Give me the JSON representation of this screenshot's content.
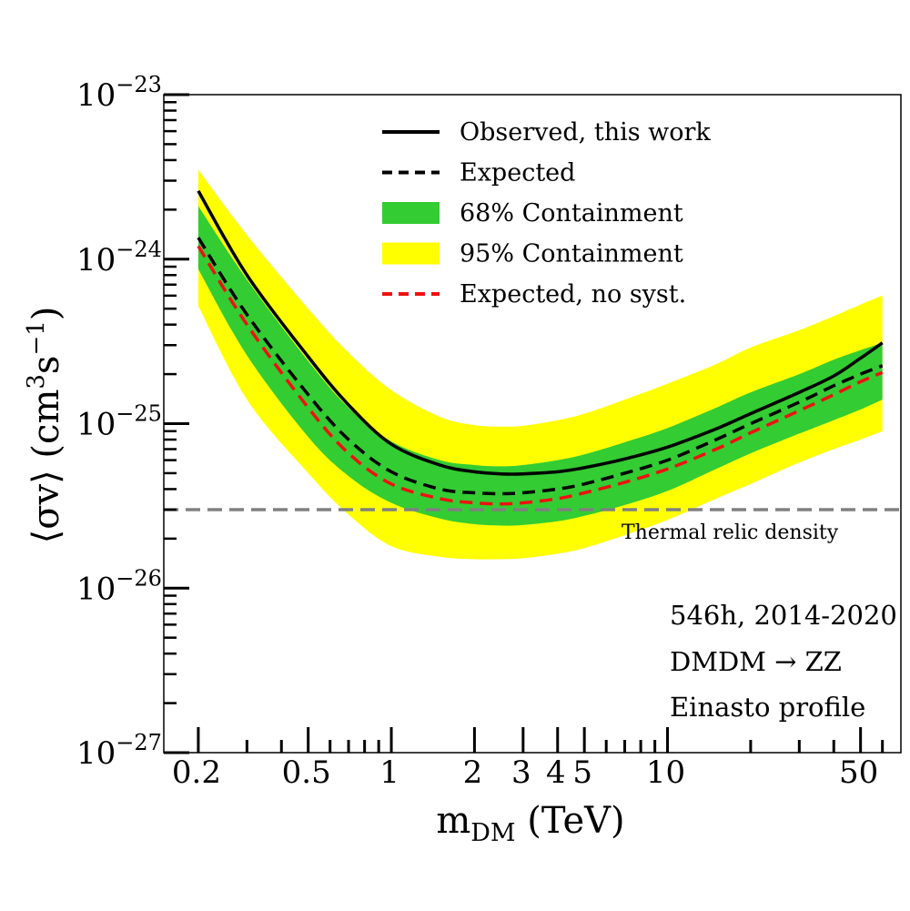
{
  "chart_data": {
    "type": "line",
    "xscale": "log",
    "yscale": "log",
    "xlim": [
      0.15,
      70
    ],
    "ylim": [
      1e-27,
      1e-23
    ],
    "xlabel": {
      "main": "m",
      "sub": "DM",
      "rest": " (TeV)"
    },
    "ylabel": {
      "pre": "⟨σv⟩ (cm",
      "sup1": "3",
      "mid": "s",
      "sup2": "−1",
      "post": ")"
    },
    "x_ticks": [
      {
        "value": 0.2,
        "label": "0.2"
      },
      {
        "value": 0.5,
        "label": "0.5"
      },
      {
        "value": 1,
        "label": "1"
      },
      {
        "value": 2,
        "label": "2"
      },
      {
        "value": 3,
        "label": "3"
      },
      {
        "value": 4,
        "label": "4"
      },
      {
        "value": 5,
        "label": "5"
      },
      {
        "value": 10,
        "label": "10"
      },
      {
        "value": 50,
        "label": "50"
      }
    ],
    "y_ticks": [
      {
        "value": 1e-23,
        "base": "10",
        "exp": "−23"
      },
      {
        "value": 1e-24,
        "base": "10",
        "exp": "−24"
      },
      {
        "value": 1e-25,
        "base": "10",
        "exp": "−25"
      },
      {
        "value": 1e-26,
        "base": "10",
        "exp": "−26"
      },
      {
        "value": 1e-27,
        "base": "10",
        "exp": "−27"
      }
    ],
    "x": [
      0.2,
      0.3,
      0.5,
      0.7,
      1,
      1.5,
      2,
      2.5,
      3,
      4,
      5,
      7,
      10,
      15,
      20,
      30,
      40,
      50,
      60
    ],
    "band95": {
      "name": "95% Containment",
      "color": "#ffff00",
      "upper": [
        3.5e-24,
        1.4e-24,
        5e-25,
        2.7e-25,
        1.6e-25,
        1.1e-25,
        9.8e-26,
        9.6e-26,
        9.7e-26,
        1.05e-25,
        1.15e-25,
        1.4e-25,
        1.75e-25,
        2.3e-25,
        2.9e-25,
        3.7e-25,
        4.5e-25,
        5.3e-25,
        6e-25
      ],
      "lower": [
        5.2e-25,
        1.4e-25,
        5e-26,
        2.8e-26,
        1.8e-26,
        1.55e-26,
        1.5e-26,
        1.5e-26,
        1.52e-26,
        1.62e-26,
        1.75e-26,
        2.1e-26,
        2.6e-26,
        3.5e-26,
        4.3e-26,
        5.8e-26,
        7e-26,
        8e-26,
        9e-26
      ]
    },
    "band68": {
      "name": "68% Containment",
      "color": "#33cc33",
      "upper": [
        2.1e-24,
        7.5e-25,
        2.4e-25,
        1.25e-25,
        7.8e-26,
        6e-26,
        5.6e-26,
        5.5e-26,
        5.6e-26,
        6e-26,
        6.5e-26,
        7.7e-26,
        9.4e-26,
        1.25e-25,
        1.55e-25,
        2e-25,
        2.45e-25,
        2.8e-25,
        3.1e-25
      ],
      "lower": [
        8.7e-25,
        2.6e-25,
        8.3e-26,
        4.8e-26,
        3.3e-26,
        2.65e-26,
        2.45e-26,
        2.4e-26,
        2.42e-26,
        2.55e-26,
        2.75e-26,
        3.2e-26,
        3.9e-26,
        5.3e-26,
        6.6e-26,
        8.7e-26,
        1.05e-25,
        1.22e-25,
        1.4e-25
      ]
    },
    "series": [
      {
        "name": "Observed, this work",
        "color": "#000000",
        "dash": "",
        "width": 3.5,
        "values": [
          2.6e-24,
          8e-25,
          2.55e-25,
          1.3e-25,
          7.5e-26,
          5.6e-26,
          5.1e-26,
          4.95e-26,
          4.95e-26,
          5.1e-26,
          5.4e-26,
          6.1e-26,
          7.2e-26,
          9.3e-26,
          1.15e-25,
          1.55e-25,
          1.95e-25,
          2.5e-25,
          3.1e-25
        ]
      },
      {
        "name": "Expected",
        "color": "#000000",
        "dash": "14,8",
        "width": 3.5,
        "values": [
          1.35e-24,
          4.6e-25,
          1.5e-25,
          8e-26,
          5.1e-26,
          4e-26,
          3.8e-26,
          3.75e-26,
          3.8e-26,
          4e-26,
          4.3e-26,
          5e-26,
          6e-26,
          8e-26,
          1e-25,
          1.35e-25,
          1.7e-25,
          2e-25,
          2.25e-25
        ]
      },
      {
        "name": "Expected, no syst.",
        "color": "#ee1111",
        "dash": "14,8",
        "width": 3.5,
        "values": [
          1.2e-24,
          4e-25,
          1.25e-25,
          6.6e-26,
          4.3e-26,
          3.5e-26,
          3.3e-26,
          3.25e-26,
          3.3e-26,
          3.5e-26,
          3.8e-26,
          4.4e-26,
          5.3e-26,
          7e-26,
          8.8e-26,
          1.2e-25,
          1.5e-25,
          1.8e-25,
          2.05e-25
        ]
      }
    ],
    "reference_line": {
      "value": 3e-26,
      "label": "Thermal relic density",
      "color": "#808080"
    },
    "legend": {
      "placement": "top-center",
      "entries": [
        {
          "label": "Observed, this work",
          "kind": "line",
          "color": "#000000",
          "dash": ""
        },
        {
          "label": "Expected",
          "kind": "line",
          "color": "#000000",
          "dash": "14,8"
        },
        {
          "label": "68% Containment",
          "kind": "patch",
          "color": "#33cc33"
        },
        {
          "label": "95% Containment",
          "kind": "patch",
          "color": "#ffff00"
        },
        {
          "label": "Expected, no syst.",
          "kind": "line",
          "color": "#ee1111",
          "dash": "14,8"
        }
      ]
    },
    "annotations": [
      {
        "text": "546h, 2014-2020"
      },
      {
        "text": "DMDM → ZZ"
      },
      {
        "text": "Einasto profile"
      }
    ],
    "grid": false
  }
}
